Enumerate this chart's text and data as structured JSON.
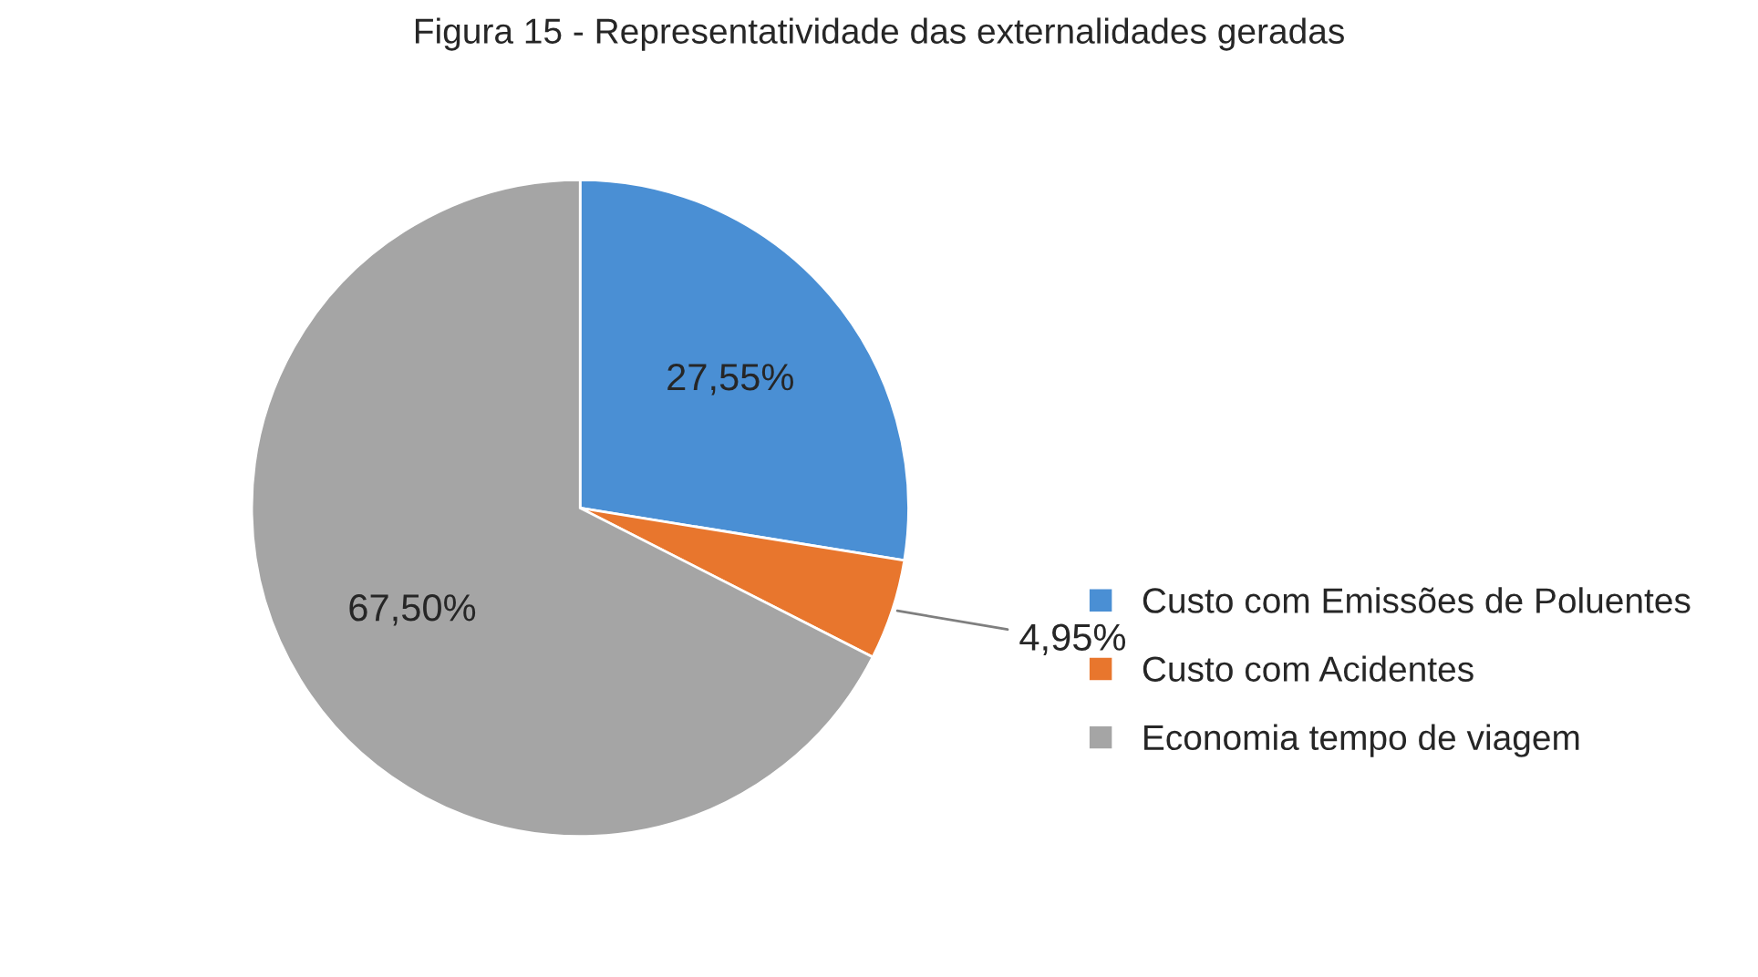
{
  "chart_data": {
    "type": "pie",
    "title": "Figura 15 - Representatividade das externalidades geradas",
    "categories": [
      "Custo com Emissões de Poluentes",
      "Custo com Acidentes",
      "Economia tempo de viagem"
    ],
    "values": [
      27.55,
      4.95,
      67.5
    ],
    "colors": [
      "#4a8fd4",
      "#e8762d",
      "#a5a5a5"
    ],
    "value_labels": [
      "27,55%",
      "4,95%",
      "67,50%"
    ],
    "legend": "right"
  }
}
